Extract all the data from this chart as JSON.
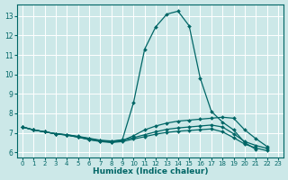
{
  "xlabel": "Humidex (Indice chaleur)",
  "bg_color": "#cce8e8",
  "grid_color": "#ffffff",
  "line_color": "#006666",
  "xlim": [
    -0.5,
    23.5
  ],
  "ylim": [
    5.75,
    13.6
  ],
  "xticks": [
    0,
    1,
    2,
    3,
    4,
    5,
    6,
    7,
    8,
    9,
    10,
    11,
    12,
    13,
    14,
    15,
    16,
    17,
    18,
    19,
    20,
    21,
    22,
    23
  ],
  "yticks": [
    6,
    7,
    8,
    9,
    10,
    11,
    12,
    13
  ],
  "series": [
    {
      "x": [
        0,
        1,
        2,
        3,
        4,
        5,
        6,
        7,
        8,
        9,
        10,
        11,
        12,
        13,
        14,
        15,
        16,
        17,
        18,
        19,
        20,
        21,
        22,
        23
      ],
      "y": [
        7.3,
        7.15,
        7.05,
        6.95,
        6.9,
        6.8,
        6.7,
        6.6,
        6.55,
        6.65,
        8.55,
        11.3,
        12.45,
        13.1,
        13.25,
        12.5,
        9.8,
        8.1,
        7.55,
        7.15,
        6.5,
        6.15,
        null,
        null
      ]
    },
    {
      "x": [
        0,
        1,
        2,
        3,
        4,
        5,
        6,
        7,
        8,
        9,
        10,
        11,
        12,
        13,
        14,
        15,
        16,
        17,
        18,
        19,
        20,
        21,
        22,
        23
      ],
      "y": [
        7.3,
        7.15,
        7.05,
        6.95,
        6.88,
        6.78,
        6.65,
        6.58,
        6.52,
        6.6,
        6.85,
        7.15,
        7.35,
        7.5,
        7.6,
        7.65,
        7.7,
        7.75,
        7.8,
        7.75,
        7.15,
        6.7,
        6.3,
        null
      ]
    },
    {
      "x": [
        0,
        1,
        2,
        3,
        4,
        5,
        6,
        7,
        8,
        9,
        10,
        11,
        12,
        13,
        14,
        15,
        16,
        17,
        18,
        19,
        20,
        21,
        22,
        23
      ],
      "y": [
        7.3,
        7.15,
        7.05,
        6.95,
        6.9,
        6.82,
        6.72,
        6.62,
        6.58,
        6.62,
        6.75,
        6.9,
        7.05,
        7.18,
        7.25,
        7.3,
        7.35,
        7.4,
        7.3,
        6.95,
        6.55,
        6.35,
        6.2,
        null
      ]
    },
    {
      "x": [
        0,
        1,
        2,
        3,
        4,
        5,
        6,
        7,
        8,
        9,
        10,
        11,
        12,
        13,
        14,
        15,
        16,
        17,
        18,
        19,
        20,
        21,
        22,
        23
      ],
      "y": [
        7.3,
        7.15,
        7.05,
        6.95,
        6.88,
        6.78,
        6.65,
        6.55,
        6.5,
        6.55,
        6.68,
        6.8,
        6.93,
        7.02,
        7.08,
        7.12,
        7.16,
        7.2,
        7.05,
        6.75,
        6.42,
        6.22,
        6.08,
        null
      ]
    }
  ]
}
